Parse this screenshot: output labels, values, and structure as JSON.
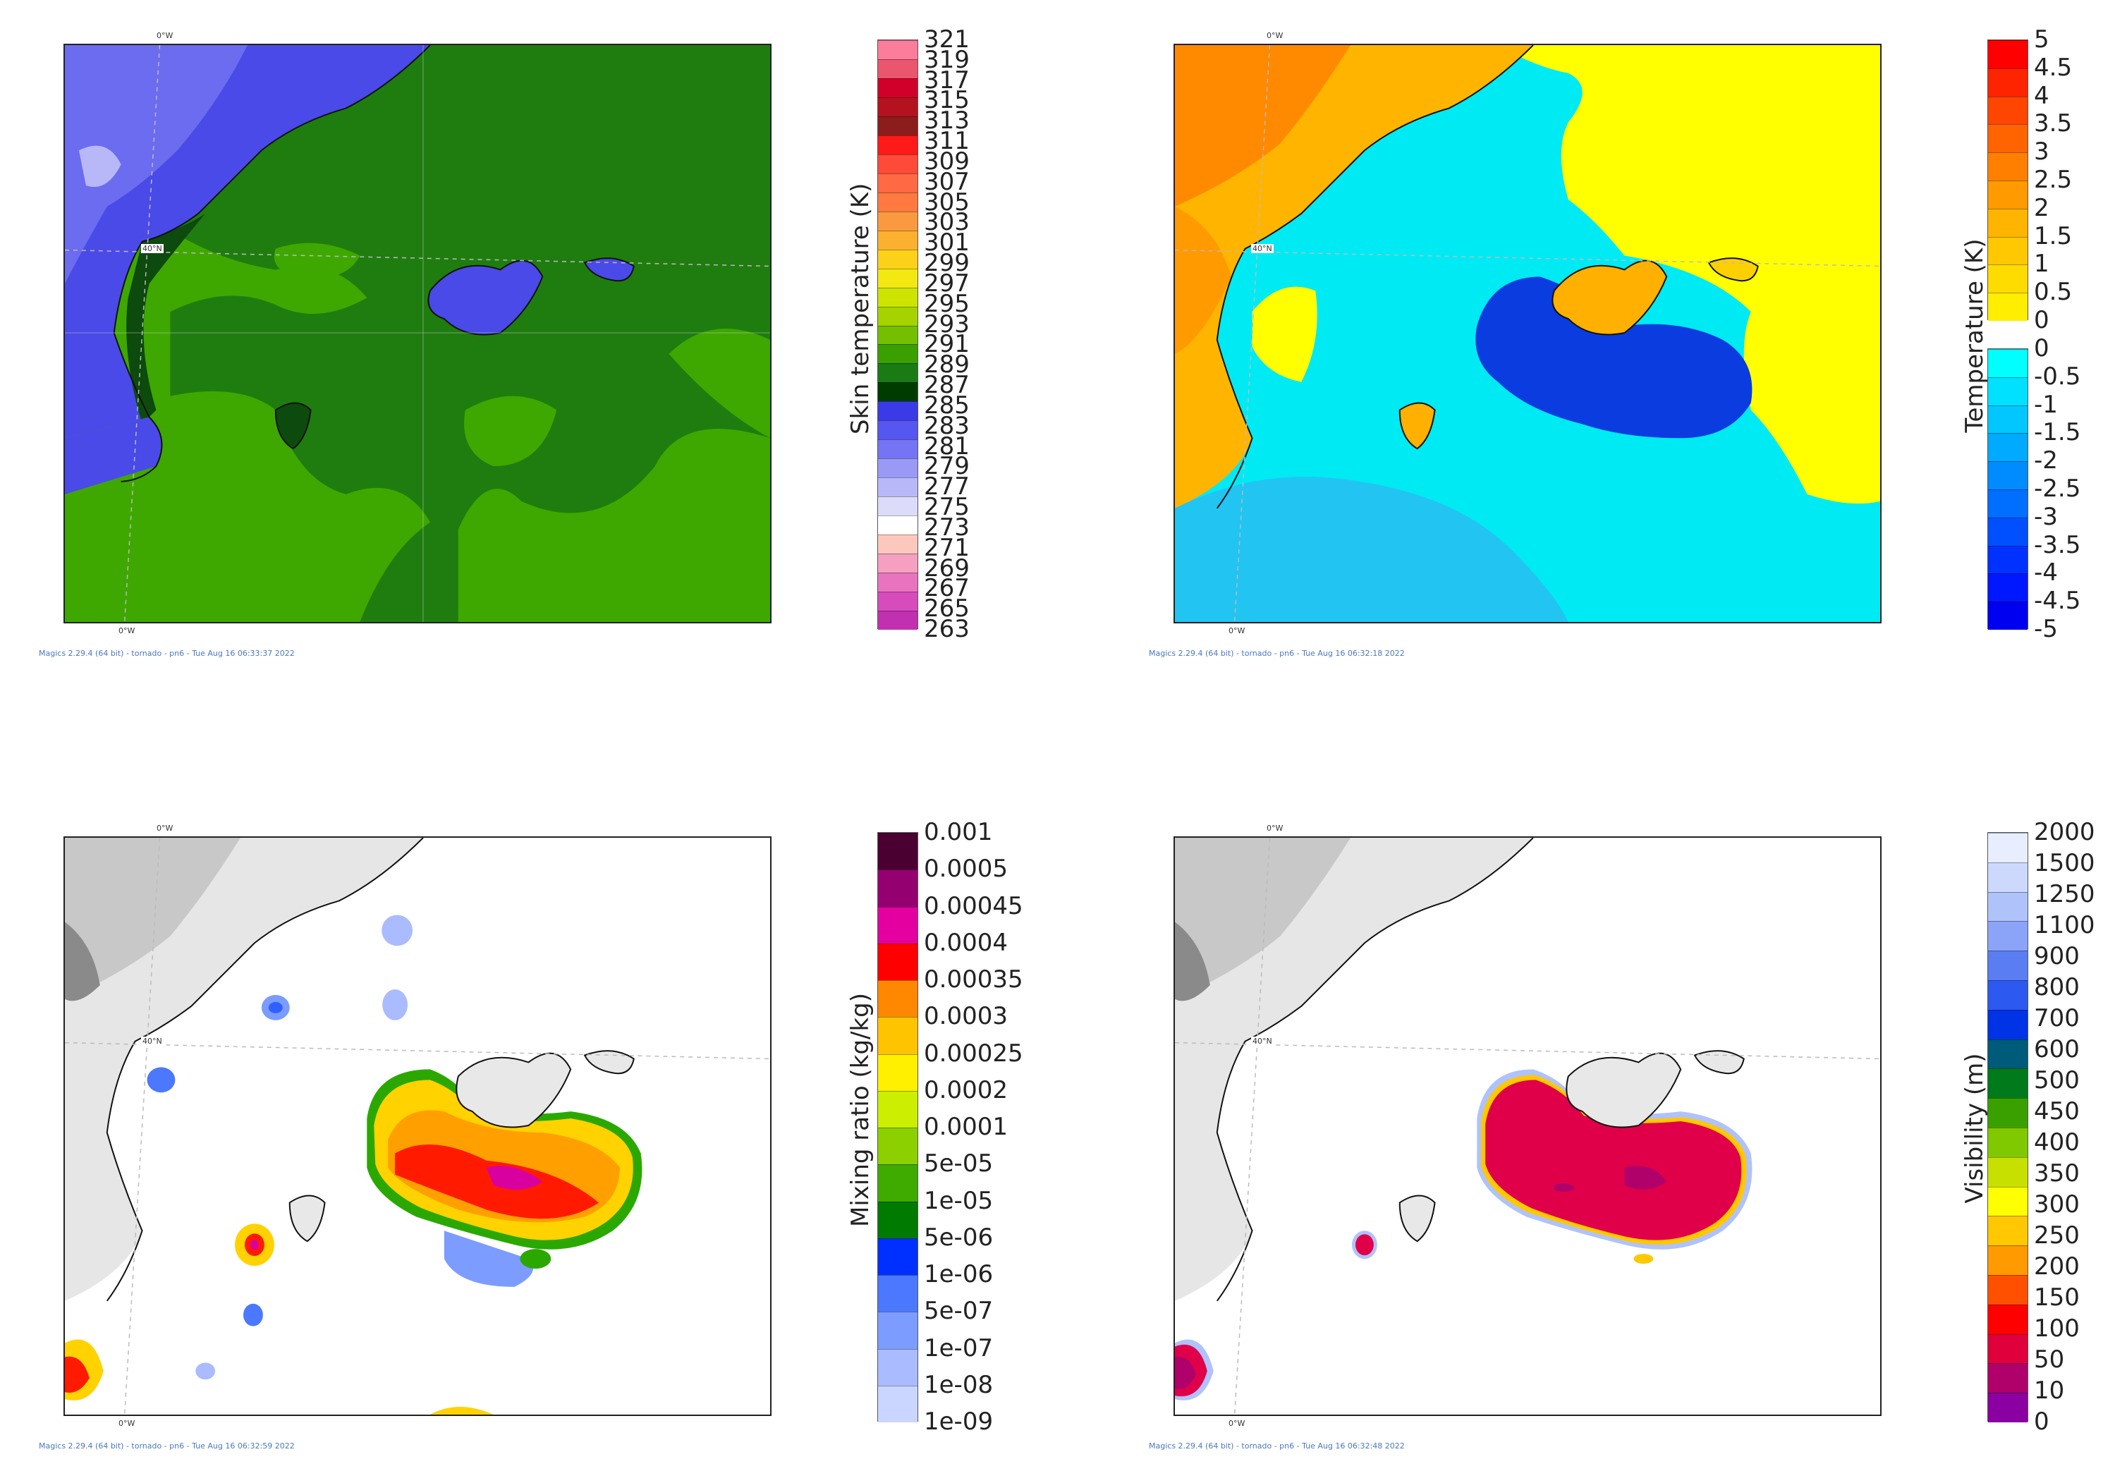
{
  "maps": [
    {
      "id": "skin",
      "lon_label_top": "0°W",
      "lon_label_bottom": "0°W",
      "lat_label": "40°N",
      "footer": "Magics 2.29.4 (64 bit) - tornado - pn6 - Tue Aug 16 06:33:37 2022",
      "colorbar": {
        "title": "Skin temperature (K)",
        "ticks": [
          "321",
          "319",
          "317",
          "315",
          "313",
          "311",
          "309",
          "307",
          "305",
          "303",
          "301",
          "299",
          "297",
          "295",
          "293",
          "291",
          "289",
          "287",
          "285",
          "283",
          "281",
          "279",
          "277",
          "275",
          "273",
          "271",
          "269",
          "267",
          "265",
          "263"
        ],
        "colors": [
          "#fb7d9c",
          "#e9566e",
          "#d1002a",
          "#b4121e",
          "#8b1d1d",
          "#ff1a1a",
          "#ff4a3a",
          "#ff6a45",
          "#ff7a40",
          "#fa9a40",
          "#fbb030",
          "#fcd11a",
          "#f3e812",
          "#cce400",
          "#a5d300",
          "#73bf00",
          "#3a9f00",
          "#1a7a14",
          "#003c00",
          "#3a3ae6",
          "#5656f0",
          "#7474f4",
          "#9a9af6",
          "#b8b8f8",
          "#dcdcfa",
          "#ffffff",
          "#fcc8be",
          "#f5a0c0",
          "#e874c0",
          "#d74cbc",
          "#c030b0"
        ]
      }
    },
    {
      "id": "tdiff",
      "lon_label_top": "0°W",
      "lon_label_bottom": "0°W",
      "lat_label": "40°N",
      "footer": "Magics 2.29.4 (64 bit) - tornado - pn6 - Tue Aug 16 06:32:18 2022",
      "colorbar": {
        "title": "Temperature (K)",
        "ticks_pos": [
          "5",
          "4.5",
          "4",
          "3.5",
          "3",
          "2.5",
          "2",
          "1.5",
          "1",
          "0.5",
          "0"
        ],
        "colors_pos": [
          "#ff0000",
          "#ff2400",
          "#ff4600",
          "#ff6400",
          "#ff8000",
          "#ff9a00",
          "#ffb400",
          "#ffc800",
          "#ffdc00",
          "#ffee00"
        ],
        "ticks_neg": [
          "0",
          "-0.5",
          "-1",
          "-1.5",
          "-2",
          "-2.5",
          "-3",
          "-3.5",
          "-4",
          "-4.5",
          "-5"
        ],
        "colors_neg": [
          "#00ffff",
          "#00e0ff",
          "#00c8ff",
          "#00aaff",
          "#008cff",
          "#006eff",
          "#0050ff",
          "#0032ff",
          "#0018ff",
          "#0000f0"
        ]
      }
    },
    {
      "id": "mix",
      "lon_label_top": "0°W",
      "lon_label_bottom": "0°W",
      "lat_label": "40°N",
      "footer": "Magics 2.29.4 (64 bit) - tornado - pn6 - Tue Aug 16 06:32:59 2022",
      "colorbar": {
        "title": "Mixing ratio (kg/kg)",
        "ticks": [
          "0.001",
          "0.0005",
          "0.00045",
          "0.0004",
          "0.00035",
          "0.0003",
          "0.00025",
          "0.0002",
          "0.0001",
          "5e-05",
          "1e-05",
          "5e-06",
          "1e-06",
          "5e-07",
          "1e-07",
          "1e-08",
          "1e-09"
        ],
        "colors": [
          "#4a0030",
          "#950070",
          "#e400a0",
          "#ff0000",
          "#ff8800",
          "#ffc400",
          "#fff000",
          "#ccee00",
          "#8cd000",
          "#3faa00",
          "#007a00",
          "#0030ff",
          "#4b78ff",
          "#7c9cff",
          "#aabcff",
          "#cad6ff"
        ]
      }
    },
    {
      "id": "vis",
      "lon_label_top": "0°W",
      "lon_label_bottom": "0°W",
      "lat_label": "40°N",
      "footer": "Magics 2.29.4 (64 bit) - tornado - pn6 - Tue Aug 16 06:32:48 2022",
      "colorbar": {
        "title": "Visibility (m)",
        "ticks": [
          "2000",
          "1500",
          "1250",
          "1100",
          "900",
          "800",
          "700",
          "600",
          "500",
          "450",
          "400",
          "350",
          "300",
          "250",
          "200",
          "150",
          "100",
          "50",
          "10",
          "0"
        ],
        "colors": [
          "#e8eeff",
          "#ccd8fc",
          "#b0c2fa",
          "#8ca4f8",
          "#5a7ef2",
          "#2c5af0",
          "#0032e6",
          "#005a7a",
          "#007a1a",
          "#3aa000",
          "#80c800",
          "#c8e000",
          "#ffff00",
          "#ffc800",
          "#ff9a00",
          "#ff5000",
          "#ff0000",
          "#e0003c",
          "#b0006a",
          "#8a00a0"
        ]
      }
    }
  ]
}
